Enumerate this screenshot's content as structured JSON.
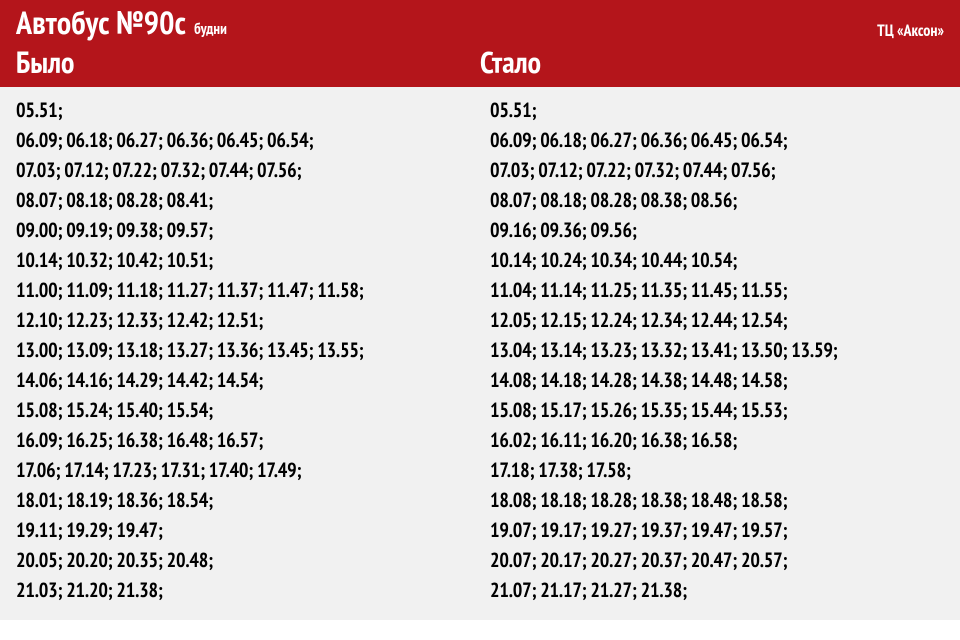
{
  "colors": {
    "header_bg": "#b4151b",
    "header_text": "#ffffff",
    "body_bg": "#f1f1f1",
    "body_text": "#000000"
  },
  "typography": {
    "title_fontsize": 32,
    "colhead_fontsize": 30,
    "row_fontsize": 20,
    "font_weight": 700
  },
  "header": {
    "title": "Автобус №90с",
    "subtitle": "будни",
    "stop": "ТЦ «Аксон»",
    "left_heading": "Было",
    "right_heading": "Стало"
  },
  "schedule": {
    "was": [
      "05.51;",
      "06.09; 06.18; 06.27; 06.36; 06.45; 06.54;",
      "07.03; 07.12; 07.22; 07.32; 07.44; 07.56;",
      "08.07; 08.18; 08.28; 08.41;",
      "09.00; 09.19; 09.38; 09.57;",
      "10.14; 10.32; 10.42; 10.51;",
      "11.00; 11.09; 11.18; 11.27; 11.37; 11.47; 11.58;",
      "12.10; 12.23; 12.33; 12.42; 12.51;",
      "13.00; 13.09; 13.18; 13.27; 13.36; 13.45; 13.55;",
      "14.06; 14.16; 14.29; 14.42; 14.54;",
      "15.08; 15.24; 15.40; 15.54;",
      "16.09; 16.25; 16.38; 16.48; 16.57;",
      "17.06; 17.14; 17.23; 17.31; 17.40; 17.49;",
      "18.01; 18.19; 18.36; 18.54;",
      "19.11; 19.29; 19.47;",
      "20.05; 20.20; 20.35; 20.48;",
      "21.03; 21.20; 21.38;"
    ],
    "now": [
      "05.51;",
      "06.09; 06.18; 06.27; 06.36; 06.45; 06.54;",
      "07.03; 07.12; 07.22; 07.32; 07.44; 07.56;",
      "08.07; 08.18; 08.28; 08.38; 08.56;",
      "09.16; 09.36; 09.56;",
      "10.14; 10.24; 10.34; 10.44; 10.54;",
      "11.04; 11.14; 11.25; 11.35; 11.45; 11.55;",
      "12.05; 12.15; 12.24; 12.34; 12.44; 12.54;",
      "13.04; 13.14; 13.23; 13.32; 13.41; 13.50; 13.59;",
      "14.08; 14.18; 14.28; 14.38; 14.48; 14.58;",
      "15.08; 15.17; 15.26; 15.35; 15.44; 15.53;",
      "16.02; 16.11; 16.20; 16.38; 16.58;",
      "17.18; 17.38; 17.58;",
      "18.08; 18.18; 18.28; 18.38; 18.48; 18.58;",
      "19.07; 19.17; 19.27; 19.37; 19.47; 19.57;",
      "20.07; 20.17; 20.27; 20.37; 20.47; 20.57;",
      "21.07; 21.17; 21.27; 21.38;"
    ]
  }
}
